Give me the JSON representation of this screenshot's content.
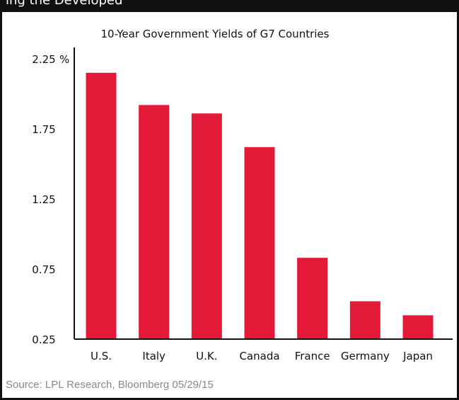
{
  "header": {
    "text": "ing  the Developed"
  },
  "chart_data": {
    "type": "bar",
    "title": "10-Year Government Yields of G7 Countries",
    "xlabel": "",
    "ylabel": "",
    "categories": [
      "U.S.",
      "Italy",
      "U.K.",
      "Canada",
      "France",
      "Germany",
      "Japan"
    ],
    "values": [
      2.15,
      1.92,
      1.86,
      1.62,
      0.83,
      0.52,
      0.42
    ],
    "ylim": [
      0.25,
      2.25
    ],
    "yticks": [
      0.25,
      0.75,
      1.25,
      1.75,
      2.25
    ],
    "ytick_labels": [
      "0.25",
      "0.75",
      "1.25",
      "1.75",
      "2.25"
    ],
    "y_unit": "%",
    "grid": false,
    "legend": "none",
    "bar_color": "#e31a37"
  },
  "footer": {
    "source": "Source: LPL Research, Bloomberg   05/29/15"
  }
}
